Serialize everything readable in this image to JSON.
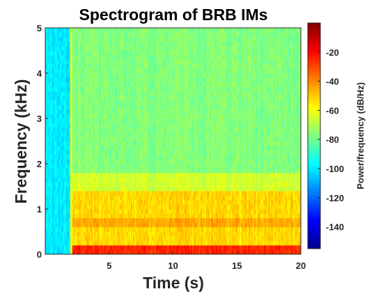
{
  "chart_data": {
    "type": "heatmap",
    "title": "Spectrogram of BRB IMs",
    "xlabel": "Time (s)",
    "ylabel": "Frequency (kHz)",
    "colorbar_label": "Power/frequency (dB/Hz)",
    "colormap": "jet",
    "xlim": [
      0,
      20
    ],
    "ylim": [
      0,
      5
    ],
    "clim": [
      -155,
      0
    ],
    "xticks": [
      5,
      10,
      15,
      20
    ],
    "yticks": [
      0,
      1,
      2,
      3,
      4,
      5
    ],
    "cbar_ticks": [
      -20,
      -40,
      -60,
      -80,
      -100,
      -120,
      -140
    ],
    "onset_time": 2.0,
    "before_onset_level": -100,
    "frequency_bands_after_onset": [
      {
        "from": 0.0,
        "to": 0.2,
        "level": -25
      },
      {
        "from": 0.2,
        "to": 0.6,
        "level": -52
      },
      {
        "from": 0.6,
        "to": 0.8,
        "level": -45
      },
      {
        "from": 0.8,
        "to": 1.4,
        "level": -52
      },
      {
        "from": 1.4,
        "to": 1.8,
        "level": -65
      },
      {
        "from": 1.8,
        "to": 5.0,
        "level": -77
      }
    ]
  }
}
